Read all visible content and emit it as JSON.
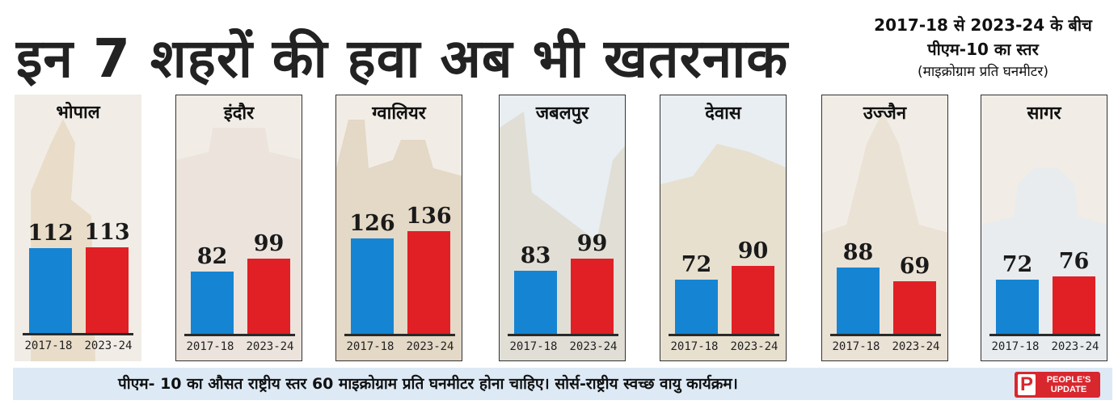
{
  "headline": "इन 7 शहरों की हवा अब भी खतरनाक",
  "subhead": {
    "line1": "2017-18 से 2023-24 के बीच",
    "line2": "पीएम-10 का स्तर",
    "line3": "(माइक्रोग्राम प्रति घनमीटर)"
  },
  "footer_note": "पीएम- 10 का औसत राष्ट्रीय स्तर 60 माइक्रोग्राम प्रति घनमीटर होना चाहिए। सोर्स-राष्ट्रीय स्वच्छ वायु कार्यक्रम।",
  "logo": {
    "mark": "P",
    "line1": "PEOPLE'S",
    "line2": "UPDATE"
  },
  "colors": {
    "series_2017": "#1585d3",
    "series_2023": "#e02025",
    "footer_bg": "#ddeaf6",
    "logo": "#d9272e"
  },
  "chart_data": {
    "type": "bar",
    "title": "इन 7 शहरों की हवा अब भी खतरनाक",
    "ylabel": "",
    "ylim": [
      0,
      150
    ],
    "series_names": [
      "2017-18",
      "2023-24"
    ],
    "categories": [
      "भोपाल",
      "इंदौर",
      "ग्वालियर",
      "जबलपुर",
      "देवास",
      "उज्जैन",
      "सागर"
    ],
    "series": [
      {
        "name": "2017-18",
        "values": [
          112,
          82,
          126,
          83,
          72,
          88,
          72
        ]
      },
      {
        "name": "2023-24",
        "values": [
          113,
          99,
          136,
          99,
          90,
          69,
          76
        ]
      }
    ]
  }
}
